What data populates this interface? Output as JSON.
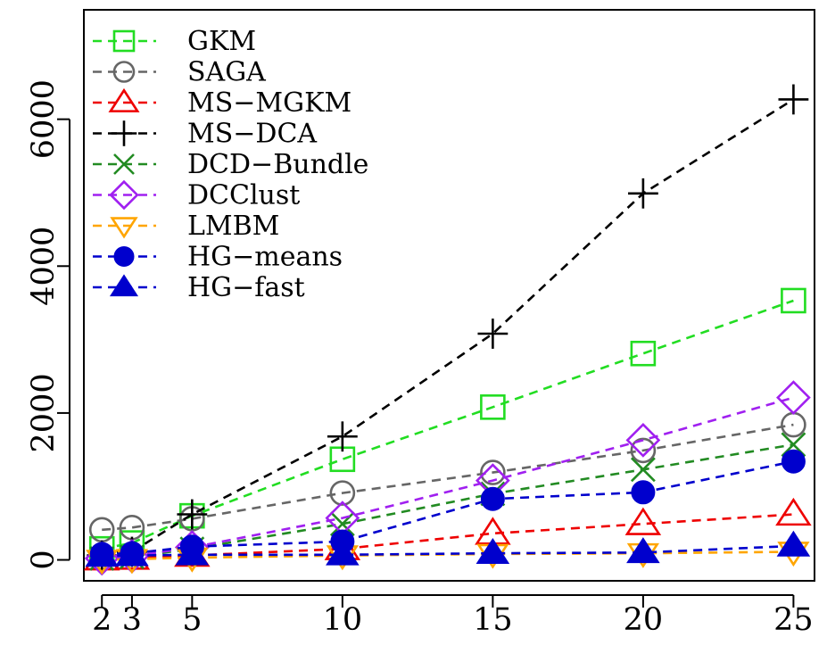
{
  "chart_data": {
    "type": "line",
    "title": "",
    "xlabel": "",
    "ylabel": "",
    "x": [
      2,
      3,
      5,
      10,
      15,
      20,
      25
    ],
    "x_ticks": [
      2,
      3,
      5,
      10,
      15,
      20,
      25
    ],
    "y_ticks": [
      0,
      2000,
      4000,
      6000
    ],
    "xlim": [
      1.4,
      25.7
    ],
    "ylim": [
      -285,
      7490
    ],
    "grid": false,
    "legend_position": "top-left",
    "series": [
      {
        "name": "GKM",
        "color": "#22DD22",
        "marker": "square",
        "values": [
          150,
          230,
          600,
          1370,
          2080,
          2810,
          3530
        ]
      },
      {
        "name": "SAGA",
        "color": "#666666",
        "marker": "circle",
        "values": [
          410,
          440,
          560,
          910,
          1190,
          1490,
          1840
        ]
      },
      {
        "name": "MS−MGKM",
        "color": "#EE0000",
        "marker": "triangle-up",
        "values": [
          10,
          20,
          60,
          150,
          360,
          490,
          620
        ]
      },
      {
        "name": "MS−DCA",
        "color": "#000000",
        "marker": "plus",
        "values": [
          60,
          110,
          620,
          1680,
          3080,
          4990,
          6270
        ]
      },
      {
        "name": "DCD−Bundle",
        "color": "#228B22",
        "marker": "cross",
        "values": [
          20,
          40,
          150,
          490,
          900,
          1230,
          1570
        ]
      },
      {
        "name": "DCClust",
        "color": "#A020F0",
        "marker": "diamond",
        "values": [
          20,
          50,
          170,
          570,
          1080,
          1630,
          2210
        ]
      },
      {
        "name": "LMBM",
        "color": "#FFA500",
        "marker": "triangle-down",
        "values": [
          0,
          10,
          30,
          60,
          80,
          90,
          110
        ]
      },
      {
        "name": "HG−means",
        "color": "#0000CD",
        "marker": "filled-circle",
        "values": [
          80,
          90,
          180,
          250,
          830,
          920,
          1340
        ]
      },
      {
        "name": "HG−fast",
        "color": "#0000CD",
        "marker": "filled-triangle",
        "values": [
          50,
          60,
          70,
          70,
          90,
          100,
          190
        ]
      }
    ]
  }
}
